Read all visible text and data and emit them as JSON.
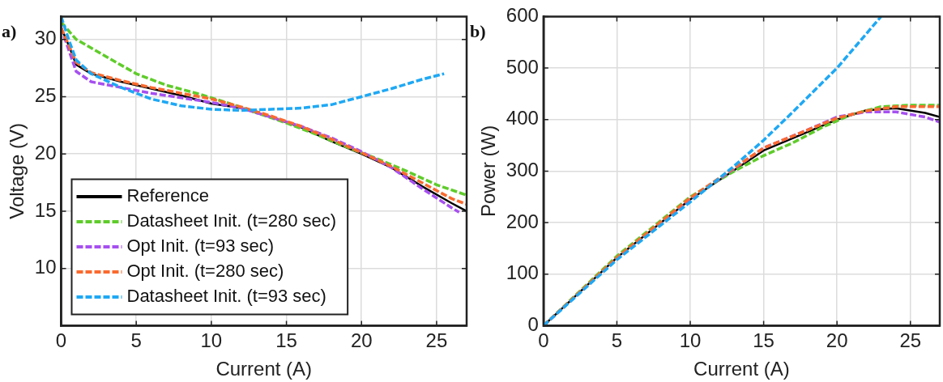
{
  "chart_data": [
    {
      "type": "line",
      "xlabel": "Current (A)",
      "ylabel": "Voltage (V)",
      "annotations": [
        "a)"
      ],
      "xlim": [
        0,
        27
      ],
      "ylim": [
        5,
        32
      ],
      "xticks": [
        0,
        5,
        10,
        15,
        20,
        25
      ],
      "yticks": [
        10,
        15,
        20,
        25,
        30
      ],
      "grid": true,
      "legend": "bottom left",
      "marker": "none",
      "series": [
        {
          "name": "Reference",
          "color": "#000000",
          "line_style": "solid",
          "x": [
            0,
            0.5,
            1,
            2,
            4,
            6,
            8,
            10,
            12,
            14,
            16,
            18,
            20,
            22,
            24,
            26,
            27
          ],
          "values": [
            31,
            29.5,
            27.8,
            27,
            26.3,
            25.7,
            25.1,
            24.4,
            24,
            23.2,
            22.3,
            21.1,
            20,
            18.8,
            17.2,
            15.7,
            15
          ]
        },
        {
          "name": "Datasheet Init. (t=280 sec)",
          "color": "#5fcc2a",
          "line_style": "dashed",
          "x": [
            0,
            1,
            3,
            5,
            7,
            9,
            11,
            13,
            15,
            17,
            19,
            21,
            23,
            25,
            27
          ],
          "values": [
            31.5,
            30,
            28.5,
            27,
            26,
            25.3,
            24.5,
            23.6,
            22.7,
            21.7,
            20.6,
            19.6,
            18.5,
            17.3,
            16.4
          ]
        },
        {
          "name": "Opt Init. (t=93 sec)",
          "color": "#a650f0",
          "line_style": "dashed",
          "x": [
            0,
            1,
            2,
            4,
            6,
            8,
            10,
            12,
            14,
            16,
            18,
            20,
            22,
            24,
            26,
            26.5
          ],
          "values": [
            31,
            27.2,
            26.3,
            25.8,
            25.3,
            24.9,
            24.5,
            24,
            23.2,
            22.4,
            21.4,
            20.2,
            18.8,
            17,
            15.3,
            14.9
          ]
        },
        {
          "name": "Opt Init. (t=280 sec)",
          "color": "#fa6a2e",
          "line_style": "dashed",
          "x": [
            0,
            1,
            2,
            4,
            6,
            8,
            10,
            12,
            14,
            16,
            18,
            20,
            22,
            24,
            26,
            27
          ],
          "values": [
            31,
            28,
            27.1,
            26.4,
            25.8,
            25.3,
            24.8,
            24.1,
            23.3,
            22.4,
            21.3,
            20.1,
            18.9,
            17.5,
            16.1,
            15.6
          ]
        },
        {
          "name": "Datasheet Init. (t=93 sec)",
          "color": "#1ea8f4",
          "line_style": "dashed",
          "x": [
            0,
            0.5,
            1,
            2,
            4,
            6,
            8,
            10,
            12,
            14,
            16,
            18,
            20,
            22,
            24,
            25.5
          ],
          "values": [
            32,
            30,
            28.2,
            27,
            25.8,
            24.8,
            24.2,
            23.9,
            23.8,
            23.9,
            24,
            24.3,
            25,
            25.7,
            26.5,
            27
          ]
        }
      ]
    },
    {
      "type": "line",
      "xlabel": "Current (A)",
      "ylabel": "Power (W)",
      "annotations": [
        "b)"
      ],
      "xlim": [
        0,
        27
      ],
      "ylim": [
        0,
        600
      ],
      "xticks": [
        0,
        5,
        10,
        15,
        20,
        25
      ],
      "yticks": [
        0,
        100,
        200,
        300,
        400,
        500,
        600
      ],
      "grid": true,
      "marker": "none",
      "series": [
        {
          "color": "#000000",
          "line_style": "solid",
          "x": [
            0,
            5,
            10,
            15,
            20,
            22,
            24,
            26,
            27
          ],
          "values": [
            0,
            132,
            245,
            340,
            400,
            418,
            422,
            413,
            405
          ]
        },
        {
          "color": "#5fcc2a",
          "line_style": "dashed",
          "x": [
            0,
            5,
            10,
            13,
            15,
            17,
            19,
            21,
            23,
            25,
            27
          ],
          "values": [
            0,
            135,
            250,
            300,
            330,
            355,
            385,
            410,
            425,
            428,
            428
          ]
        },
        {
          "color": "#a650f0",
          "line_style": "dashed",
          "x": [
            0,
            5,
            10,
            15,
            18,
            20,
            22,
            24,
            26,
            27
          ],
          "values": [
            0,
            130,
            245,
            345,
            380,
            405,
            415,
            415,
            405,
            395
          ]
        },
        {
          "color": "#fa6a2e",
          "line_style": "dashed",
          "x": [
            0,
            5,
            10,
            15,
            20,
            22,
            24,
            26,
            27
          ],
          "values": [
            0,
            132,
            248,
            345,
            403,
            417,
            425,
            425,
            425
          ]
        },
        {
          "color": "#1ea8f4",
          "line_style": "dashed",
          "x": [
            0,
            5,
            10,
            13,
            15,
            17,
            20,
            23
          ],
          "values": [
            0,
            128,
            240,
            310,
            360,
            415,
            500,
            600
          ]
        }
      ]
    }
  ]
}
